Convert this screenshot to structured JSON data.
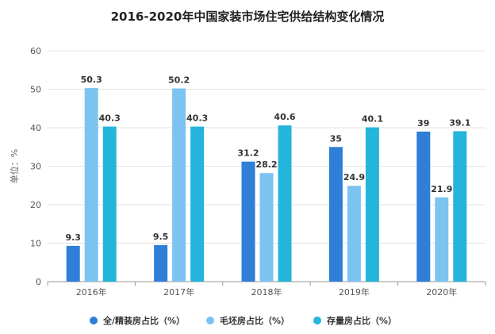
{
  "chart_data": {
    "type": "bar",
    "title": "2016-2020年中国家装市场住宅供给结构变化情况",
    "ylabel": "单位：%",
    "xlabel": "",
    "ylim": [
      0,
      60
    ],
    "yticks": [
      0,
      10,
      20,
      30,
      40,
      50,
      60
    ],
    "grid": true,
    "legend_position": "bottom",
    "categories": [
      "2016年",
      "2017年",
      "2018年",
      "2019年",
      "2020年"
    ],
    "series": [
      {
        "name": "全/精装房占比（%）",
        "color": "#2f7fd8",
        "values": [
          9.3,
          9.5,
          31.2,
          35,
          39
        ],
        "labels": [
          "9.3",
          "9.5",
          "31.2",
          "35",
          "39"
        ]
      },
      {
        "name": "毛坯房占比（%）",
        "color": "#7cc3f2",
        "values": [
          50.3,
          50.2,
          28.2,
          24.9,
          21.9
        ],
        "labels": [
          "50.3",
          "50.2",
          "28.2",
          "24.9",
          "21.9"
        ]
      },
      {
        "name": "存量房占比（%）",
        "color": "#25b5dc",
        "values": [
          40.3,
          40.3,
          40.6,
          40.1,
          39.1
        ],
        "labels": [
          "40.3",
          "40.3",
          "40.6",
          "40.1",
          "39.1"
        ]
      }
    ]
  }
}
